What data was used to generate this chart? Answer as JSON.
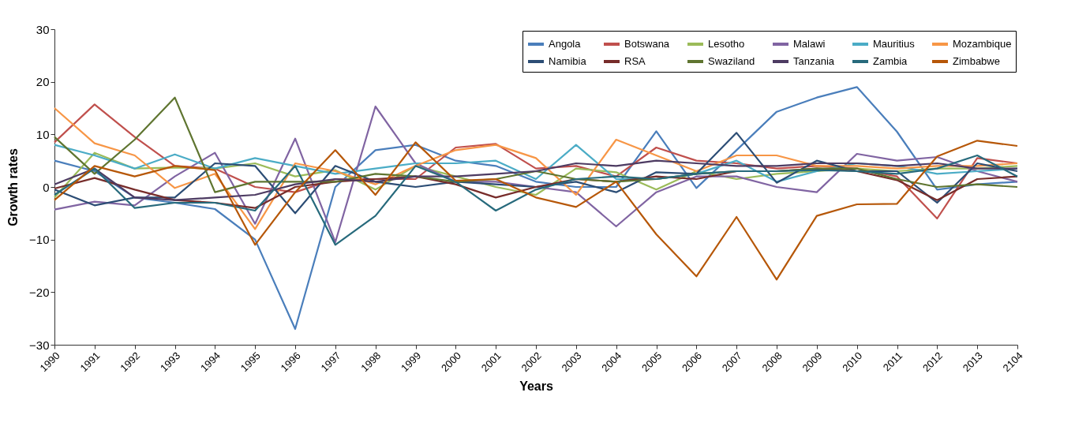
{
  "chart_data": {
    "type": "line",
    "xlabel": "Years",
    "ylabel": "Growth rates",
    "categories": [
      "1990",
      "1991",
      "1992",
      "1993",
      "1994",
      "1995",
      "1996",
      "1997",
      "1998",
      "1999",
      "2000",
      "2001",
      "2002",
      "2003",
      "2004",
      "2005",
      "2006",
      "2007",
      "2008",
      "2009",
      "2010",
      "2011",
      "2012",
      "2013",
      "2104"
    ],
    "ylim": [
      -30,
      30
    ],
    "yticks": [
      -30,
      -20,
      -10,
      0,
      10,
      20,
      30
    ],
    "grid": false,
    "legend": "top right",
    "marker": "none",
    "line_style": "solid",
    "series": [
      {
        "name": "Angola",
        "color": "#4a7ebb",
        "values": [
          5,
          3,
          -2,
          -3,
          -4.2,
          -10,
          -27,
          0,
          7,
          8,
          5,
          4,
          1,
          0,
          0,
          10.6,
          -0.2,
          7,
          14.3,
          17,
          19,
          10.5,
          -0.5,
          0.5,
          1
        ]
      },
      {
        "name": "Botswana",
        "color": "#c0504d",
        "values": [
          8.5,
          15.7,
          9.5,
          4,
          3.5,
          0,
          -1,
          1.5,
          1.5,
          1.5,
          7.5,
          8.2,
          3.5,
          4,
          2,
          7.5,
          5,
          4.5,
          3.5,
          4,
          3.5,
          2,
          -6,
          5.5,
          4.5
        ]
      },
      {
        "name": "Lesotho",
        "color": "#9bbb59",
        "values": [
          -2,
          6.5,
          3.5,
          3.7,
          3.5,
          4.5,
          2,
          3.2,
          -0.5,
          4,
          2,
          0,
          -1.5,
          3.5,
          2.8,
          -0.5,
          3,
          1.5,
          2.5,
          3,
          3.5,
          3,
          3.5,
          3.5,
          4
        ]
      },
      {
        "name": "Malawi",
        "color": "#8064a2",
        "values": [
          -4.3,
          -2.8,
          -3.5,
          2,
          6.5,
          -7,
          9.2,
          -10.5,
          15.3,
          4.5,
          1,
          1,
          0,
          -1,
          -7.5,
          -1,
          2,
          2,
          0,
          -1,
          6.3,
          5,
          5.7,
          3,
          1
        ]
      },
      {
        "name": "Mauritius",
        "color": "#4bacc6",
        "values": [
          8,
          6,
          3.5,
          6.2,
          3.5,
          5.5,
          4,
          2.5,
          3.5,
          4.5,
          4.5,
          5,
          1.5,
          8,
          1.5,
          1.5,
          2.5,
          5,
          1,
          3,
          4.5,
          4,
          2.5,
          3,
          3.5
        ]
      },
      {
        "name": "Mozambique",
        "color": "#f79646",
        "values": [
          15,
          8.3,
          6,
          -0.2,
          2.5,
          -8,
          4.5,
          3,
          0.5,
          4,
          7,
          8,
          5.5,
          -1.5,
          9,
          6,
          3,
          6,
          6,
          4,
          4,
          3.5,
          4,
          4,
          4.5
        ]
      },
      {
        "name": "Namibia",
        "color": "#2c4d75",
        "values": [
          -0.5,
          -3.5,
          -2,
          -2,
          4.5,
          4,
          -5,
          4,
          1,
          0,
          1,
          0.5,
          0,
          1,
          -1,
          2.8,
          2.5,
          10.3,
          0.8,
          5,
          3,
          3,
          -3,
          4.5,
          3
        ]
      },
      {
        "name": "RSA",
        "color": "#772c2a",
        "values": [
          -0.3,
          1.7,
          -0.5,
          -2.5,
          -3,
          -4,
          0,
          1,
          1.5,
          2,
          0.5,
          -2,
          0,
          1.5,
          1,
          2,
          1.5,
          3,
          3,
          3.5,
          3,
          1.3,
          -2.5,
          1.5,
          2
        ]
      },
      {
        "name": "Swaziland",
        "color": "#5f7530",
        "values": [
          9.5,
          2.5,
          9,
          17,
          -1,
          1,
          1,
          1,
          2.5,
          2,
          1,
          1.5,
          3,
          1.5,
          1,
          1.5,
          2.5,
          3,
          3,
          3.5,
          3.5,
          1.5,
          0,
          0.5,
          0
        ]
      },
      {
        "name": "Tanzania",
        "color": "#4d3b62",
        "values": [
          0.5,
          3.5,
          -2,
          -2.5,
          -2,
          -1.5,
          0.5,
          1.5,
          1,
          2,
          2,
          2.5,
          3,
          4.5,
          4,
          5,
          4.5,
          4,
          4,
          4.5,
          4.5,
          4,
          4.5,
          3.5,
          3.5
        ]
      },
      {
        "name": "Zambia",
        "color": "#276a7c",
        "values": [
          -1.5,
          3.5,
          -4,
          -3,
          -3,
          -4.5,
          4,
          -11,
          -5.5,
          4,
          1,
          -4.5,
          -0.5,
          1.5,
          2,
          1.5,
          2.5,
          3,
          3,
          3.2,
          3,
          2.5,
          3.5,
          6,
          2
        ]
      },
      {
        "name": "Zimbabwe",
        "color": "#b65708",
        "values": [
          -2.5,
          4,
          2,
          4,
          3.2,
          -11,
          -1,
          7,
          -1.5,
          8.5,
          1.2,
          1.5,
          -2,
          -3.8,
          1,
          -9,
          -17,
          -5.7,
          -17.6,
          -5.5,
          -3.3,
          -3.2,
          5.8,
          8.8,
          7.8
        ]
      }
    ]
  }
}
